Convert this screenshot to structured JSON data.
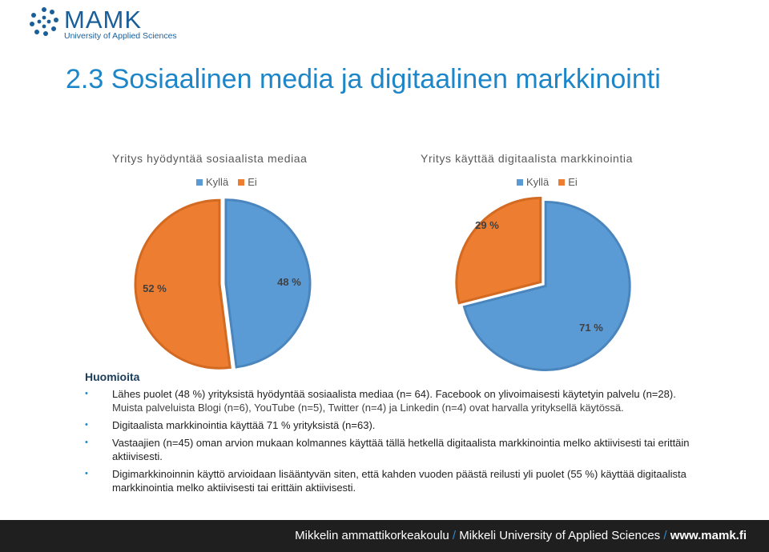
{
  "logo": {
    "name": "MAMK",
    "subtitle": "University of Applied Sciences"
  },
  "title": "2.3 Sosiaalinen media ja digitaalinen markkinointi",
  "colors": {
    "kylla": "#5b9bd5",
    "ei": "#ed7d31",
    "title": "#1c86c8"
  },
  "chart_data": [
    {
      "type": "pie",
      "title": "Yritys hyödyntää sosiaalista mediaa",
      "legend": [
        "Kyllä",
        "Ei"
      ],
      "legend_position": "top",
      "slices": [
        {
          "name": "Kyllä",
          "value": 48,
          "label": "48 %"
        },
        {
          "name": "Ei",
          "value": 52,
          "label": "52 %"
        }
      ]
    },
    {
      "type": "pie",
      "title": "Yritys käyttää digitaalista markkinointia",
      "legend": [
        "Kyllä",
        "Ei"
      ],
      "legend_position": "top",
      "slices": [
        {
          "name": "Kyllä",
          "value": 71,
          "label": "71 %"
        },
        {
          "name": "Ei",
          "value": 29,
          "label": "29 %"
        }
      ]
    }
  ],
  "notes": {
    "heading": "Huomioita",
    "items": [
      {
        "text": "Lähes puolet  (48 %) yrityksistä hyödyntää sosiaalista mediaa (n= 64). Facebook on ylivoimaisesti käytetyin palvelu (n=28). ",
        "extra": "Muista palveluista Blogi (n=6), YouTube (n=5), Twitter (n=4) ja Linkedin (n=4) ovat harvalla yrityksellä käytössä."
      },
      {
        "text": "Digitaalista markkinointia  käyttää 71 % yrityksistä (n=63).",
        "extra": ""
      },
      {
        "text": "Vastaajien (n=45) oman arvion mukaan kolmannes käyttää tällä hetkellä digitaalista markkinointia melko aktiivisesti tai erittäin aktiivisesti.",
        "extra": ""
      },
      {
        "text": "Digimarkkinoinnin käyttö arvioidaan lisääntyvän siten, että kahden vuoden päästä reilusti yli puolet  (55 %) käyttää digitaalista markkinointia melko aktiivisesti tai erittäin aktiivisesti.",
        "extra": ""
      }
    ]
  },
  "footer": {
    "part1": "Mikkelin ammattikorkeakoulu",
    "separator": "/",
    "part2": "Mikkeli University of Applied Sciences",
    "part3": "www.mamk.fi"
  }
}
